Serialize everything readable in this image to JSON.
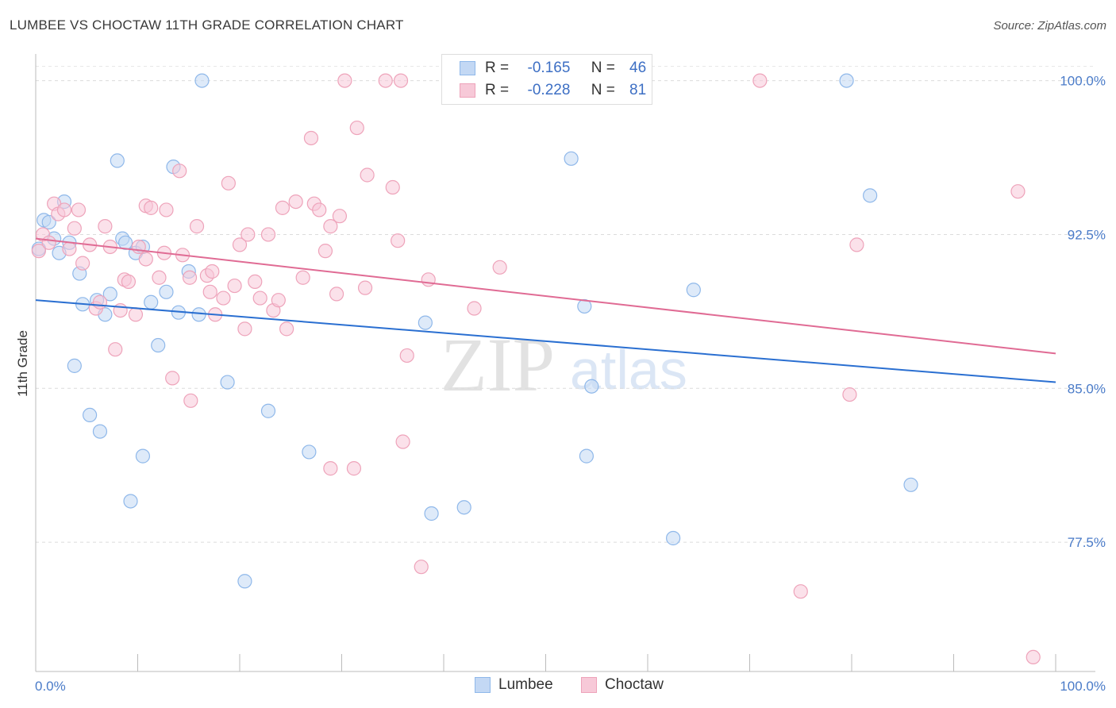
{
  "title": "LUMBEE VS CHOCTAW 11TH GRADE CORRELATION CHART",
  "source": "Source: ZipAtlas.com",
  "watermark": {
    "zip": "ZIP",
    "atlas": "atlas"
  },
  "legend": {
    "rows": [
      {
        "r_label": "R =",
        "r_value": "-0.165",
        "n_label": "N =",
        "n_value": "46"
      },
      {
        "r_label": "R =",
        "r_value": "-0.228",
        "n_label": "N =",
        "n_value": "81"
      }
    ]
  },
  "bottom_legend": [
    "Lumbee",
    "Choctaw"
  ],
  "chart_data": {
    "type": "scatter",
    "ylabel": "11th Grade",
    "x_tick_labels": [
      "0.0%",
      "100.0%"
    ],
    "y_tick_labels": [
      "100.0%",
      "92.5%",
      "85.0%",
      "77.5%"
    ],
    "y_ticks": [
      100.0,
      92.5,
      85.0,
      77.5
    ],
    "xlim": [
      0,
      100
    ],
    "ylim": [
      71.2,
      101.3
    ],
    "grid": true,
    "legend_position": "top-center",
    "series": [
      {
        "name": "Lumbee",
        "color": "#8fb8ea",
        "fill": "#c3d8f4",
        "line_color": "#2a6fd1",
        "trend": [
          [
            0,
            89.3
          ],
          [
            100,
            85.3
          ]
        ],
        "points": [
          [
            0.3,
            91.8
          ],
          [
            0.8,
            93.2
          ],
          [
            1.3,
            93.1
          ],
          [
            1.8,
            92.3
          ],
          [
            2.3,
            91.6
          ],
          [
            2.8,
            94.1
          ],
          [
            3.3,
            92.1
          ],
          [
            3.8,
            86.1
          ],
          [
            4.3,
            90.6
          ],
          [
            4.6,
            89.1
          ],
          [
            5.3,
            83.7
          ],
          [
            6.0,
            89.3
          ],
          [
            6.3,
            82.9
          ],
          [
            6.8,
            88.6
          ],
          [
            7.3,
            89.6
          ],
          [
            8.0,
            96.1
          ],
          [
            8.5,
            92.3
          ],
          [
            8.8,
            92.1
          ],
          [
            9.3,
            79.5
          ],
          [
            9.8,
            91.6
          ],
          [
            10.5,
            91.9
          ],
          [
            10.5,
            81.7
          ],
          [
            11.3,
            89.2
          ],
          [
            12.0,
            87.1
          ],
          [
            12.8,
            89.7
          ],
          [
            13.5,
            95.8
          ],
          [
            14.0,
            88.7
          ],
          [
            15.0,
            90.7
          ],
          [
            16.0,
            88.6
          ],
          [
            16.3,
            100.0
          ],
          [
            18.8,
            85.3
          ],
          [
            20.5,
            75.6
          ],
          [
            22.8,
            83.9
          ],
          [
            26.8,
            81.9
          ],
          [
            38.2,
            88.2
          ],
          [
            38.8,
            78.9
          ],
          [
            42.0,
            79.2
          ],
          [
            52.5,
            96.2
          ],
          [
            53.8,
            89.0
          ],
          [
            54.0,
            81.7
          ],
          [
            54.5,
            85.1
          ],
          [
            62.5,
            77.7
          ],
          [
            64.5,
            89.8
          ],
          [
            79.5,
            100.0
          ],
          [
            81.8,
            94.4
          ],
          [
            85.8,
            80.3
          ]
        ]
      },
      {
        "name": "Choctaw",
        "color": "#eea3ba",
        "fill": "#f7c9d8",
        "line_color": "#e06b94",
        "trend": [
          [
            0,
            92.3
          ],
          [
            100,
            86.7
          ]
        ],
        "points": [
          [
            0.3,
            91.7
          ],
          [
            0.7,
            92.5
          ],
          [
            1.3,
            92.1
          ],
          [
            1.8,
            94.0
          ],
          [
            2.2,
            93.5
          ],
          [
            2.8,
            93.7
          ],
          [
            3.3,
            91.8
          ],
          [
            3.8,
            92.8
          ],
          [
            4.2,
            93.7
          ],
          [
            4.6,
            91.1
          ],
          [
            5.3,
            92.0
          ],
          [
            5.9,
            88.9
          ],
          [
            6.3,
            89.2
          ],
          [
            6.8,
            92.9
          ],
          [
            7.3,
            91.9
          ],
          [
            7.8,
            86.9
          ],
          [
            8.3,
            88.8
          ],
          [
            8.7,
            90.3
          ],
          [
            9.1,
            90.2
          ],
          [
            9.8,
            88.6
          ],
          [
            10.1,
            91.9
          ],
          [
            10.8,
            91.3
          ],
          [
            10.8,
            93.9
          ],
          [
            11.3,
            93.8
          ],
          [
            12.1,
            90.4
          ],
          [
            12.6,
            91.6
          ],
          [
            12.8,
            93.7
          ],
          [
            13.4,
            85.5
          ],
          [
            14.1,
            95.6
          ],
          [
            14.4,
            91.5
          ],
          [
            15.1,
            90.4
          ],
          [
            15.2,
            84.4
          ],
          [
            15.8,
            92.9
          ],
          [
            16.8,
            90.5
          ],
          [
            17.1,
            89.7
          ],
          [
            17.3,
            90.7
          ],
          [
            17.6,
            88.6
          ],
          [
            18.4,
            89.4
          ],
          [
            18.9,
            95.0
          ],
          [
            19.5,
            90.0
          ],
          [
            20.0,
            92.0
          ],
          [
            20.5,
            87.9
          ],
          [
            20.8,
            92.5
          ],
          [
            21.5,
            90.2
          ],
          [
            22.0,
            89.4
          ],
          [
            22.8,
            92.5
          ],
          [
            23.3,
            88.8
          ],
          [
            23.8,
            89.3
          ],
          [
            24.2,
            93.8
          ],
          [
            24.6,
            87.9
          ],
          [
            25.5,
            94.1
          ],
          [
            26.2,
            90.4
          ],
          [
            27.0,
            97.2
          ],
          [
            27.3,
            94.0
          ],
          [
            27.8,
            93.7
          ],
          [
            28.4,
            91.7
          ],
          [
            28.9,
            92.9
          ],
          [
            29.5,
            89.6
          ],
          [
            29.8,
            93.4
          ],
          [
            31.2,
            81.1
          ],
          [
            30.3,
            100.0
          ],
          [
            31.5,
            97.7
          ],
          [
            32.3,
            89.9
          ],
          [
            32.5,
            95.4
          ],
          [
            34.3,
            100.0
          ],
          [
            35.5,
            92.2
          ],
          [
            36.0,
            82.4
          ],
          [
            35.0,
            94.8
          ],
          [
            36.4,
            86.6
          ],
          [
            35.8,
            100.0
          ],
          [
            38.5,
            90.3
          ],
          [
            28.9,
            81.1
          ],
          [
            37.8,
            76.3
          ],
          [
            43.0,
            88.9
          ],
          [
            45.5,
            90.9
          ],
          [
            71.0,
            100.0
          ],
          [
            75.0,
            75.1
          ],
          [
            79.8,
            84.7
          ],
          [
            80.5,
            92.0
          ],
          [
            96.3,
            94.6
          ],
          [
            97.8,
            71.9
          ]
        ]
      }
    ]
  }
}
